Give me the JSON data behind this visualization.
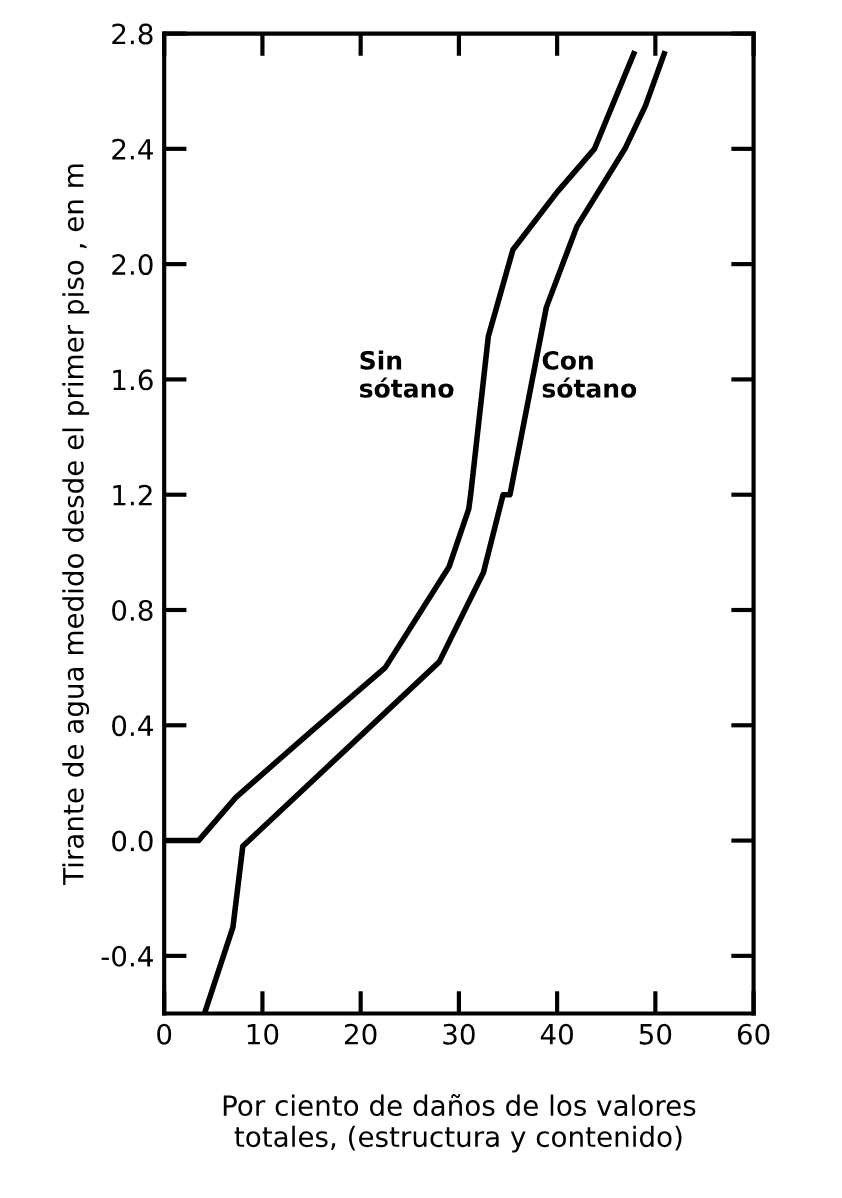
{
  "chart_data": {
    "type": "line",
    "xlabel": "Por ciento de daños de los valores\ntotales, (estructura y contenido)",
    "ylabel": "Tirante de agua medido desde el primer piso , en m",
    "series": [
      {
        "name": "Sin sótano",
        "color": "#000000",
        "x": [
          0,
          3.5,
          7.3,
          15,
          22.5,
          29,
          31,
          31.2,
          33,
          35.5,
          40,
          43.8,
          47.8
        ],
        "values": [
          0,
          0,
          0.15,
          0.38,
          0.6,
          0.95,
          1.15,
          1.2,
          1.75,
          2.05,
          2.25,
          2.4,
          2.73
        ]
      },
      {
        "name": "Con sótano",
        "color": "#000000",
        "x": [
          4.1,
          7,
          8,
          18,
          28,
          32.5,
          34.5,
          35.2,
          38.9,
          42,
          46.9,
          49,
          50.9
        ],
        "values": [
          -0.6,
          -0.3,
          -0.02,
          0.3,
          0.62,
          0.93,
          1.2,
          1.2,
          1.85,
          2.13,
          2.4,
          2.55,
          2.73
        ]
      }
    ],
    "xlim": [
      0,
      60
    ],
    "ylim": [
      -0.6,
      2.8
    ],
    "xticks": [
      0,
      10,
      20,
      30,
      40,
      50,
      60
    ],
    "yticks": [
      {
        "value": -0.4,
        "label": "-0.4"
      },
      {
        "value": 0,
        "label": "0.0"
      },
      0.4,
      0.8,
      1.2,
      1.6,
      {
        "value": 2,
        "label": "2.0"
      },
      2.4,
      2.8
    ],
    "grid": false,
    "legend": false,
    "marker": "none",
    "line_style": "solid"
  }
}
